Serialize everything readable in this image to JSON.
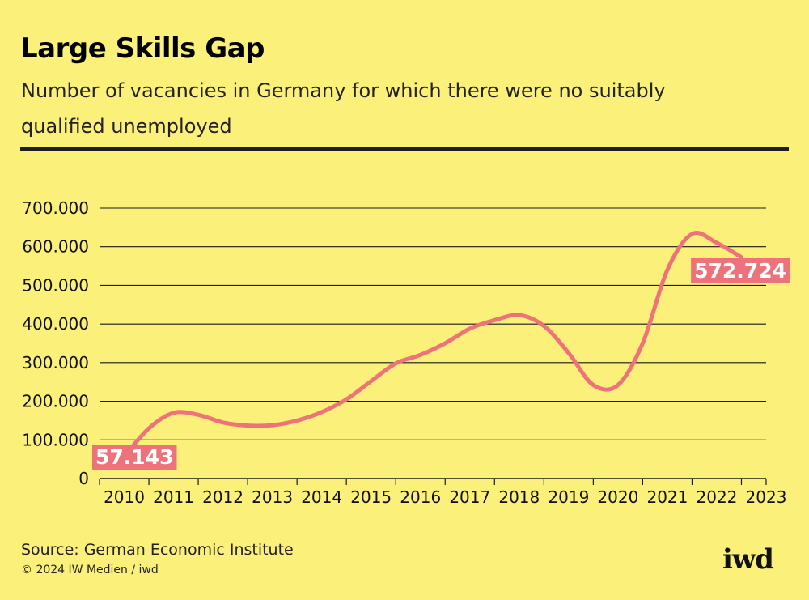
{
  "header": {
    "title": "Large Skills Gap",
    "subtitle": "Number of vacancies in Germany for which there were no suitably qualified unemployed"
  },
  "footer": {
    "source": "Source: German Economic Institute",
    "copyright": "© 2024 IW Medien / iwd",
    "logo": "iwd"
  },
  "colors": {
    "background": "#fbf07a",
    "line": "#ee727a",
    "label_bg": "#ee727a",
    "grid": "#1a1a1a"
  },
  "chart_data": {
    "type": "line",
    "title": "Large Skills Gap",
    "subtitle": "Number of vacancies in Germany for which there were no suitably qualified unemployed",
    "xlabel": "",
    "ylabel": "",
    "categories": [
      "2010",
      "2011",
      "2012",
      "2013",
      "2014",
      "2015",
      "2016",
      "2017",
      "2018",
      "2019",
      "2020",
      "2021",
      "2022",
      "2023"
    ],
    "x_range": [
      2010,
      2023.5
    ],
    "ylim": [
      0,
      700000
    ],
    "y_ticks": [
      0,
      100000,
      200000,
      300000,
      400000,
      500000,
      600000,
      700000
    ],
    "y_tick_labels": [
      "0",
      "100.000",
      "200.000",
      "300.000",
      "400.000",
      "500.000",
      "600.000",
      "700.000"
    ],
    "grid": true,
    "series": [
      {
        "x": [
          2010.5,
          2011.0,
          2011.5,
          2012.0,
          2012.5,
          2013.0,
          2013.5,
          2014.0,
          2014.5,
          2015.0,
          2015.5,
          2016.0,
          2016.5,
          2017.0,
          2017.5,
          2018.0,
          2018.5,
          2019.0,
          2019.5,
          2020.0,
          2020.5,
          2021.0,
          2021.5,
          2022.0,
          2022.5,
          2023.0
        ],
        "y": [
          57143,
          130000,
          170000,
          165000,
          145000,
          137000,
          138000,
          150000,
          172000,
          205000,
          252000,
          298000,
          320000,
          350000,
          388000,
          410000,
          423000,
          395000,
          325000,
          242000,
          242000,
          350000,
          540000,
          633000,
          610000,
          572724
        ]
      }
    ],
    "annotations": [
      {
        "text": "57.143",
        "x": 2010.5,
        "y": 57143
      },
      {
        "text": "572.724",
        "x": 2023.0,
        "y": 572724
      }
    ]
  }
}
